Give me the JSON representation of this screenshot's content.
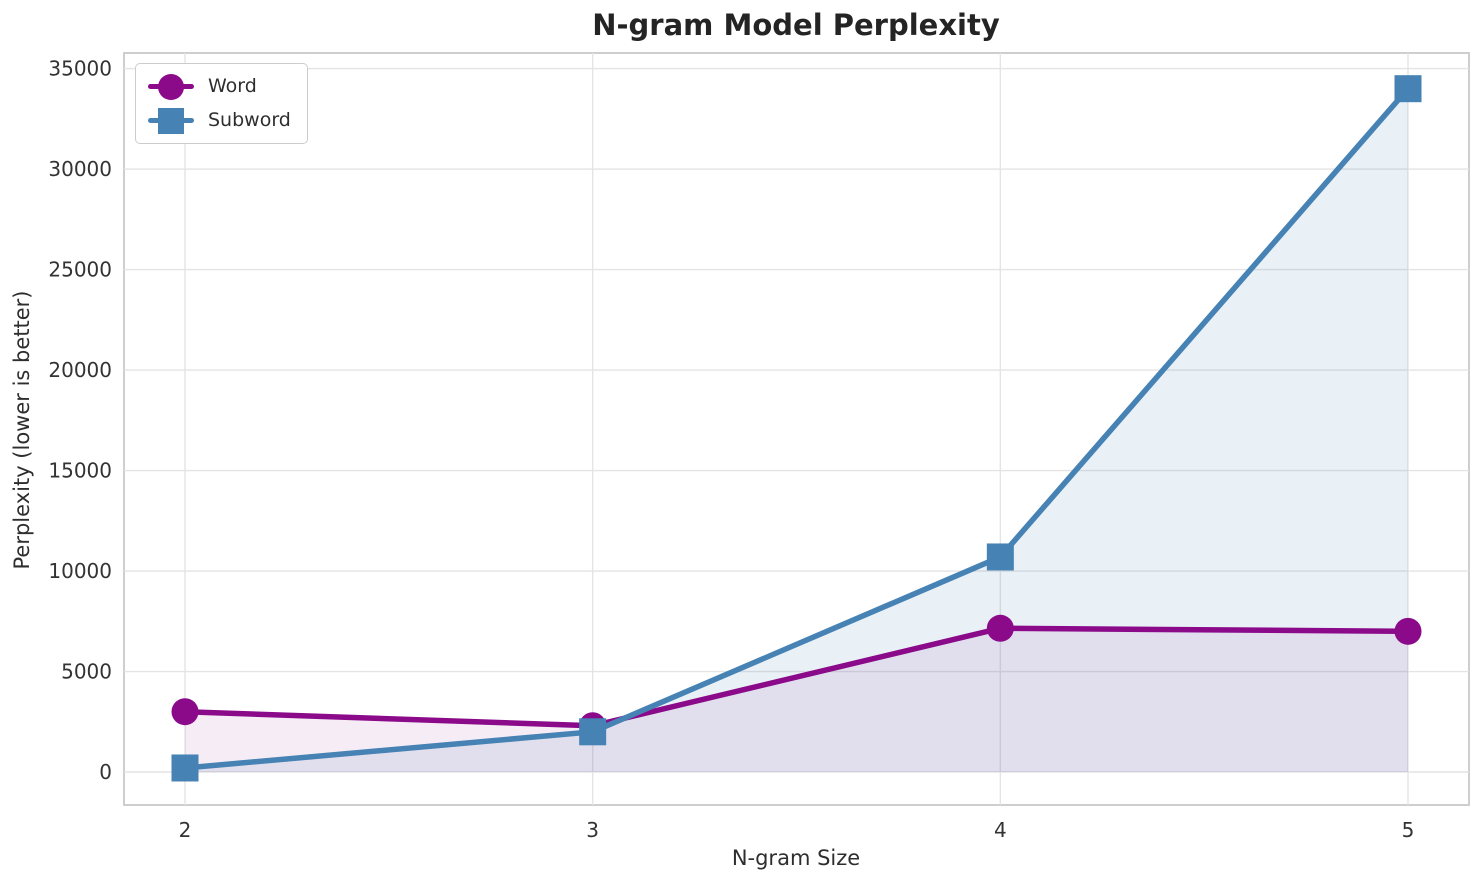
{
  "chart_data": {
    "type": "line",
    "title": "N-gram Model Perplexity",
    "xlabel": "N-gram Size",
    "ylabel": "Perplexity (lower is better)",
    "x": [
      2,
      3,
      4,
      5
    ],
    "xtick_labels": [
      "2",
      "3",
      "4",
      "5"
    ],
    "yticks": [
      0,
      5000,
      10000,
      15000,
      20000,
      25000,
      30000,
      35000
    ],
    "ylim": [
      0,
      35000
    ],
    "grid": true,
    "legend_position": "upper left",
    "series": [
      {
        "name": "Word",
        "marker": "circle",
        "color": "#8A0A8A",
        "fill_opacity": 0.08,
        "values": [
          3000,
          2300,
          7150,
          7000
        ]
      },
      {
        "name": "Subword",
        "marker": "square",
        "color": "#4682B4",
        "fill_opacity": 0.12,
        "values": [
          200,
          2000,
          10700,
          34000
        ]
      }
    ]
  },
  "style_colors": {
    "gridline": "#e4e4e4",
    "spine": "#c9c9c9",
    "tick_text": "#333333",
    "title_text": "#242424"
  }
}
